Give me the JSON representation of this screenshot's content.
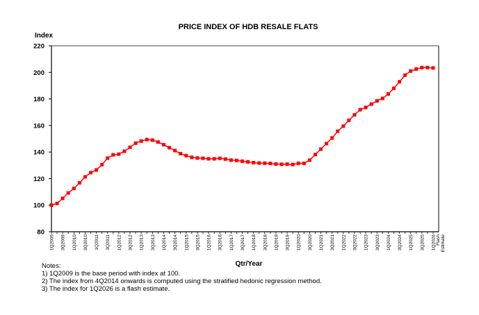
{
  "chart_data": {
    "type": "line",
    "title": "PRICE INDEX OF HDB RESALE FLATS",
    "ylabel": "Index",
    "xlabel": "Qtr/Year",
    "ylim": [
      80,
      220
    ],
    "yticks": [
      80,
      100,
      120,
      140,
      160,
      180,
      200,
      220
    ],
    "grid": false,
    "line_color": "#ff0000",
    "x": [
      "1Q2009",
      "2Q2009",
      "3Q2009",
      "4Q2009",
      "1Q2010",
      "2Q2010",
      "3Q2010",
      "4Q2010",
      "1Q2011",
      "2Q2011",
      "3Q2011",
      "4Q2011",
      "1Q2012",
      "2Q2012",
      "3Q2012",
      "4Q2012",
      "1Q2013",
      "2Q2013",
      "3Q2013",
      "4Q2013",
      "1Q2014",
      "2Q2014",
      "3Q2014",
      "4Q2014",
      "1Q2015",
      "2Q2015",
      "3Q2015",
      "4Q2015",
      "1Q2016",
      "2Q2016",
      "3Q2016",
      "4Q2016",
      "1Q2017",
      "2Q2017",
      "3Q2017",
      "4Q2017",
      "1Q2018",
      "2Q2018",
      "3Q2018",
      "4Q2018",
      "1Q2019",
      "2Q2019",
      "3Q2019",
      "4Q2019",
      "1Q2020",
      "2Q2020",
      "3Q2020",
      "4Q2020",
      "1Q2021",
      "2Q2021",
      "3Q2021",
      "4Q2021",
      "1Q2022",
      "2Q2022",
      "3Q2022",
      "4Q2022",
      "1Q2023",
      "2Q2023",
      "3Q2023",
      "4Q2023",
      "1Q2024",
      "2Q2024",
      "3Q2024",
      "4Q2024",
      "1Q2025",
      "2Q2025",
      "3Q2025",
      "4Q2025",
      "1Q2026"
    ],
    "values": [
      100,
      101.3,
      105.1,
      109.2,
      112.6,
      116.8,
      121.3,
      124.5,
      126.5,
      130.5,
      135.4,
      137.9,
      138.4,
      140.6,
      143.6,
      146.7,
      148.3,
      149.4,
      149.0,
      147.5,
      145.5,
      143.3,
      141.1,
      138.8,
      137.3,
      136.0,
      135.5,
      135.3,
      134.9,
      134.9,
      135.3,
      134.7,
      133.9,
      133.7,
      133.1,
      132.6,
      132.0,
      131.7,
      131.6,
      131.4,
      131.0,
      130.8,
      130.9,
      130.6,
      131.5,
      131.5,
      133.9,
      138.1,
      142.2,
      146.4,
      150.6,
      155.7,
      159.5,
      163.9,
      168.0,
      171.9,
      173.6,
      176.1,
      178.5,
      180.4,
      183.7,
      188.0,
      192.9,
      197.9,
      201.0,
      202.5,
      203.6,
      203.6,
      203.3
    ],
    "tick_labels": [
      "1Q2009",
      "3Q2009",
      "1Q2010",
      "3Q2010",
      "1Q2011",
      "3Q2011",
      "1Q2012",
      "3Q2012",
      "1Q2013",
      "3Q2013",
      "1Q2014",
      "3Q2014",
      "1Q2015",
      "3Q2015",
      "1Q2016",
      "3Q2016",
      "1Q2017",
      "3Q2017",
      "1Q2018",
      "3Q2018",
      "1Q2019",
      "3Q2019",
      "1Q2020",
      "3Q2020",
      "1Q2021",
      "3Q2021",
      "1Q2022",
      "3Q2022",
      "1Q2023",
      "3Q2023",
      "1Q2024",
      "3Q2024",
      "1Q2025",
      "3Q2025",
      "1Q2026"
    ],
    "last_tick_extra": [
      "Flash",
      "Estimate"
    ]
  },
  "notes": {
    "heading": "Notes:",
    "items": [
      "1) 1Q2009 is the base period with index at 100.",
      "2) The index from 4Q2014 onwards is computed using the stratified hedonic regression method.",
      "3) The index for 1Q2026 is a flash estimate."
    ]
  }
}
